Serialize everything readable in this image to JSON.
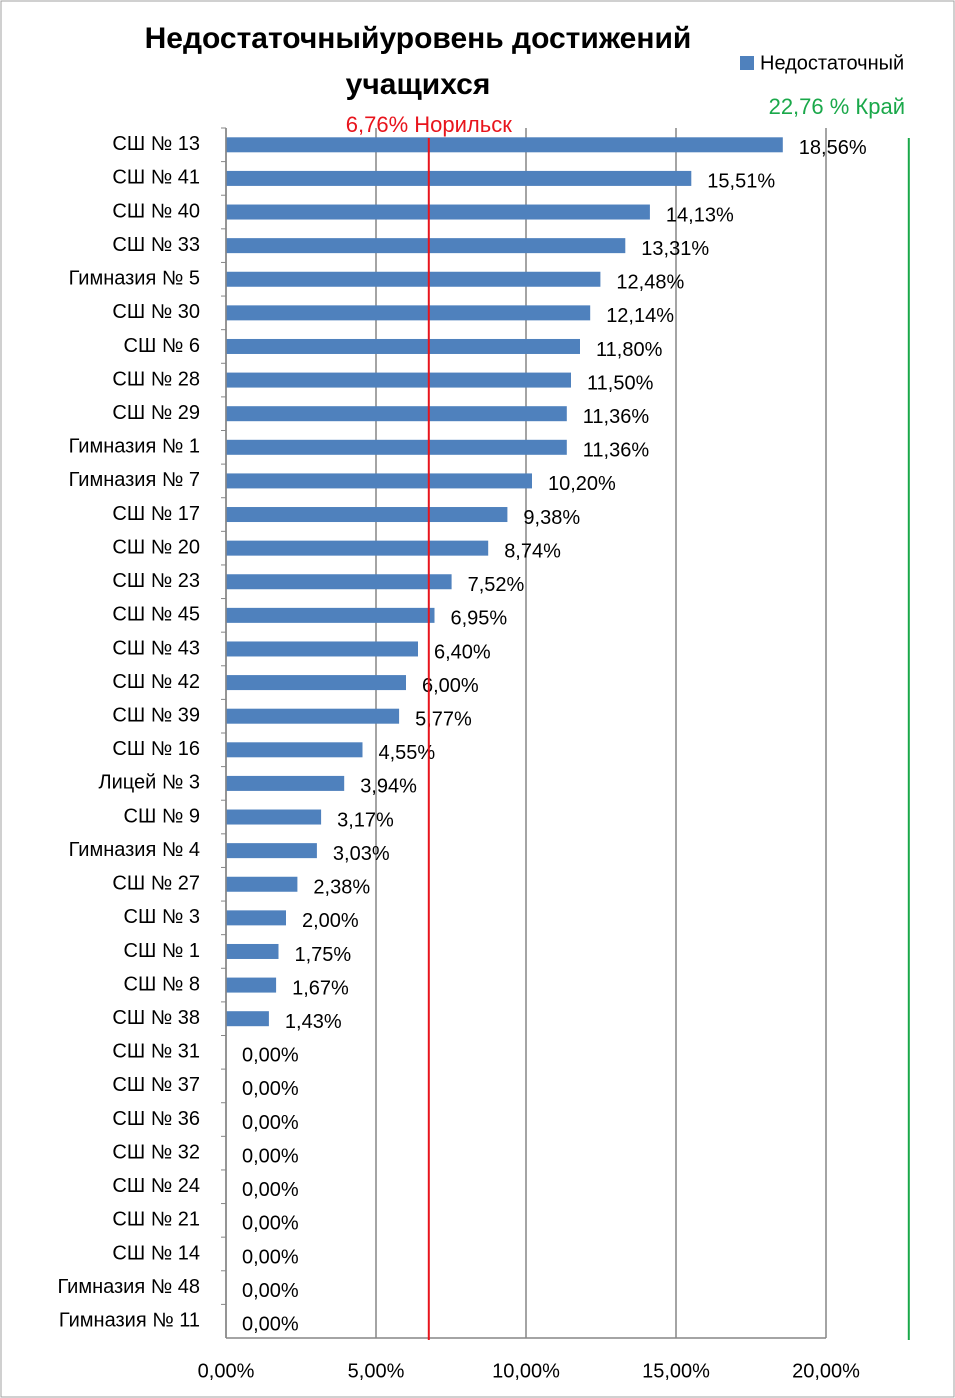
{
  "chart_data": {
    "type": "hbar",
    "title": [
      "Недостаточныйуровень достижений",
      "учащихся"
    ],
    "categories": [
      "СШ № 13",
      "СШ № 41",
      "СШ № 40",
      "СШ № 33",
      "Гимназия № 5",
      "СШ № 30",
      "СШ № 6",
      "СШ № 28",
      "СШ № 29",
      "Гимназия № 1",
      "Гимназия № 7",
      "СШ № 17",
      "СШ № 20",
      "СШ № 23",
      "СШ № 45",
      "СШ № 43",
      "СШ № 42",
      "СШ № 39",
      "СШ № 16",
      "Лицей № 3",
      "СШ № 9",
      "Гимназия № 4",
      "СШ № 27",
      "СШ № 3",
      "СШ № 1",
      "СШ № 8",
      "СШ № 38",
      "СШ № 31",
      "СШ № 37",
      "СШ № 36",
      "СШ № 32",
      "СШ № 24",
      "СШ № 21",
      "СШ № 14",
      "Гимназия № 48",
      "Гимназия № 11"
    ],
    "series": [
      {
        "name": "Недостаточный",
        "color": "#4f81bd",
        "values": [
          18.56,
          15.51,
          14.13,
          13.31,
          12.48,
          12.14,
          11.8,
          11.5,
          11.36,
          11.36,
          10.2,
          9.38,
          8.74,
          7.52,
          6.95,
          6.4,
          6.0,
          5.77,
          4.55,
          3.94,
          3.17,
          3.03,
          2.38,
          2.0,
          1.75,
          1.67,
          1.43,
          0,
          0,
          0,
          0,
          0,
          0,
          0,
          0,
          0
        ],
        "value_labels": [
          "18,56%",
          "15,51%",
          "14,13%",
          "13,31%",
          "12,48%",
          "12,14%",
          "11,80%",
          "11,50%",
          "11,36%",
          "11,36%",
          "10,20%",
          "9,38%",
          "8,74%",
          "7,52%",
          "6,95%",
          "6,40%",
          "6,00%",
          "5,77%",
          "4,55%",
          "3,94%",
          "3,17%",
          "3,03%",
          "2,38%",
          "2,00%",
          "1,75%",
          "1,67%",
          "1,43%",
          "0,00%",
          "0,00%",
          "0,00%",
          "0,00%",
          "0,00%",
          "0,00%",
          "0,00%",
          "0,00%",
          "0,00%"
        ]
      }
    ],
    "xlim": [
      0,
      24
    ],
    "xticks": [
      {
        "value": 0,
        "label": "0,00%"
      },
      {
        "value": 5,
        "label": "5,00%"
      },
      {
        "value": 10,
        "label": "10,00%"
      },
      {
        "value": 15,
        "label": "15,00%"
      },
      {
        "value": 20,
        "label": "20,00%"
      }
    ],
    "grid": true,
    "legend": "top-right",
    "reference_lines": [
      {
        "value": 6.76,
        "label": "6,76%  Норильск",
        "color": "#e8141c"
      },
      {
        "value": 22.76,
        "label": "22,76 %  Край",
        "color": "#1aa84a"
      }
    ]
  }
}
